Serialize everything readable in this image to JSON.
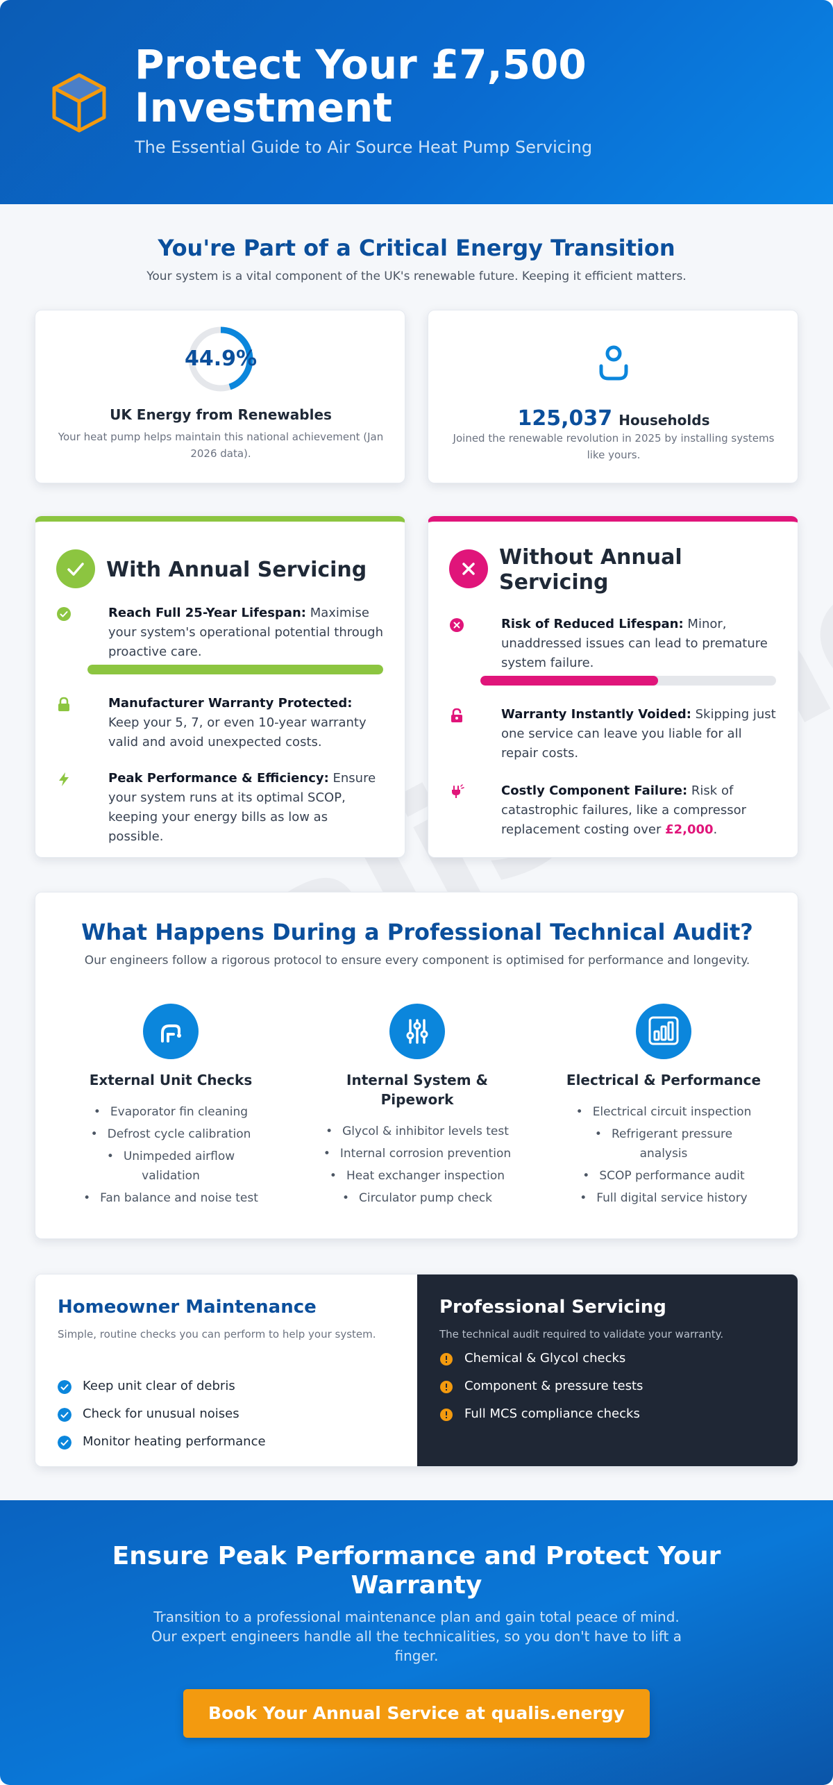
{
  "header": {
    "title": "Protect Your £7,500 Investment",
    "subtitle": "The Essential Guide to Air Source Heat Pump Servicing",
    "logo_icon": "box-icon"
  },
  "watermark": "qualis.energy",
  "intro": {
    "title": "You're Part of a Critical Energy Transition",
    "subtitle": "Your system is a vital component of the UK's renewable future. Keeping it efficient matters."
  },
  "stats": {
    "renewables": {
      "value": "44.9%",
      "fraction": 0.449,
      "label": "UK Energy from Renewables",
      "desc": "Your heat pump helps maintain this national achievement (Jan 2026 data)."
    },
    "households": {
      "value": "125,037",
      "word": "Households",
      "desc": "Joined the renewable revolution in 2025 by installing systems like yours.",
      "icon": "person-icon"
    }
  },
  "with_servicing": {
    "title": "With Annual Servicing",
    "accent": "#8cc540",
    "items": [
      {
        "bold": "Reach Full 25-Year Lifespan:",
        "text": " Maximise your system's operational potential through proactive care.",
        "icon": "check-circle-icon",
        "progress": 1.0
      },
      {
        "bold": "Manufacturer Warranty Protected:",
        "text": " Keep your 5, 7, or even 10-year warranty valid and avoid unexpected costs.",
        "icon": "lock-icon"
      },
      {
        "bold": "Peak Performance & Efficiency:",
        "text": " Ensure your system runs at its optimal SCOP, keeping your energy bills as low as possible.",
        "icon": "lightning-icon"
      }
    ]
  },
  "without_servicing": {
    "title": "Without Annual Servicing",
    "accent": "#e0157a",
    "items": [
      {
        "bold": "Risk of Reduced Lifespan:",
        "text": " Minor, unaddressed issues can lead to premature system failure.",
        "icon": "x-circle-icon",
        "progress": 0.6
      },
      {
        "bold": "Warranty Instantly Voided:",
        "text": " Skipping just one service can leave you liable for all repair costs.",
        "icon": "unlock-icon"
      },
      {
        "bold": "Costly Component Failure:",
        "text": " Risk of catastrophic failures, like a compressor replacement costing over ",
        "highlight": "£2,000",
        "tail": ".",
        "icon": "unplugged-icon"
      }
    ]
  },
  "audit": {
    "title": "What Happens During a Professional Technical Audit?",
    "subtitle": "Our engineers follow a rigorous protocol to ensure every component is optimised for performance and longevity.",
    "columns": [
      {
        "title": "External Unit Checks",
        "icon": "wrench-icon",
        "items": [
          "Evaporator fin cleaning",
          "Defrost cycle calibration",
          "Unimpeded airflow validation",
          "Fan balance and noise test"
        ]
      },
      {
        "title": "Internal System & Pipework",
        "icon": "sliders-icon",
        "items": [
          "Glycol & inhibitor levels test",
          "Internal corrosion prevention",
          "Heat exchanger inspection",
          "Circulator pump check"
        ]
      },
      {
        "title": "Electrical & Performance",
        "icon": "bar-chart-icon",
        "items": [
          "Electrical circuit inspection",
          "Refrigerant pressure analysis",
          "SCOP performance audit",
          "Full digital service history"
        ]
      }
    ]
  },
  "homeowner": {
    "title": "Homeowner Maintenance",
    "subtitle": "Simple, routine checks you can perform to help your system.",
    "items": [
      "Keep unit clear of debris",
      "Check for unusual noises",
      "Monitor heating performance"
    ]
  },
  "professional": {
    "title": "Professional Servicing",
    "subtitle": "The technical audit required to validate your warranty.",
    "items": [
      "Chemical & Glycol checks",
      "Component & pressure tests",
      "Full MCS compliance checks"
    ]
  },
  "cta": {
    "title": "Ensure Peak Performance and Protect Your Warranty",
    "subtitle": "Transition to a professional maintenance plan and gain total peace of mind. Our expert engineers handle all the technicalities, so you don't have to lift a finger.",
    "button": "Book Your Annual Service at qualis.energy"
  }
}
